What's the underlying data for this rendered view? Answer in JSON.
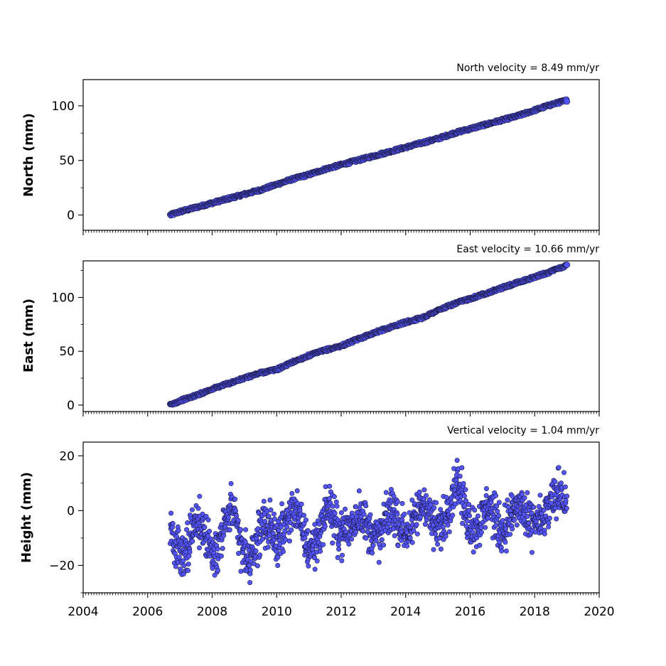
{
  "chart_data": [
    {
      "type": "scatter",
      "title": "North velocity = 8.49 mm/yr",
      "xlabel": "",
      "ylabel": "North (mm)",
      "xlim": [
        2004,
        2020
      ],
      "ylim": [
        -14,
        124
      ],
      "yticks": [
        "0",
        "50",
        "100"
      ],
      "yticks_values": [
        0,
        50,
        100
      ],
      "xticks": [],
      "marker_color": "#5555ff",
      "edge_color": "#1a1a40",
      "series": [
        {
          "x": [
            2006.7,
            2007.0,
            2007.5,
            2008.0,
            2008.5,
            2009.0,
            2009.5,
            2010.0,
            2010.5,
            2011.0,
            2011.5,
            2012.0,
            2012.5,
            2013.0,
            2013.5,
            2014.0,
            2014.5,
            2015.0,
            2015.5,
            2016.0,
            2016.5,
            2017.0,
            2017.5,
            2018.0,
            2018.5,
            2019.0
          ],
          "values": [
            0,
            3,
            7,
            11,
            15,
            19,
            23,
            28,
            33,
            37,
            42,
            46,
            50,
            54,
            58,
            62,
            66,
            70,
            75,
            79,
            83,
            87,
            91,
            96,
            101,
            105
          ]
        }
      ]
    },
    {
      "type": "scatter",
      "title": "East velocity = 10.66 mm/yr",
      "xlabel": "",
      "ylabel": "East (mm)",
      "xlim": [
        2004,
        2020
      ],
      "ylim": [
        -6,
        134
      ],
      "yticks": [
        "0",
        "50",
        "100"
      ],
      "yticks_values": [
        0,
        50,
        100
      ],
      "xticks": [],
      "marker_color": "#5555ff",
      "edge_color": "#1a1a40",
      "series": [
        {
          "x": [
            2006.7,
            2007.0,
            2007.5,
            2008.0,
            2008.5,
            2009.0,
            2009.5,
            2010.0,
            2010.5,
            2011.0,
            2011.5,
            2012.0,
            2012.5,
            2013.0,
            2013.5,
            2014.0,
            2014.5,
            2015.0,
            2015.5,
            2016.0,
            2016.5,
            2017.0,
            2017.5,
            2018.0,
            2018.5,
            2019.0
          ],
          "values": [
            0,
            4,
            9,
            15,
            20,
            25,
            30,
            33,
            40,
            46,
            51,
            55,
            61,
            67,
            72,
            77,
            81,
            88,
            94,
            99,
            104,
            109,
            114,
            119,
            124,
            130
          ]
        }
      ]
    },
    {
      "type": "scatter",
      "title": "Vertical velocity = 1.04 mm/yr",
      "xlabel": "",
      "ylabel": "Height (mm)",
      "xlim": [
        2004,
        2020
      ],
      "ylim": [
        -30,
        25
      ],
      "yticks": [
        "20",
        "0",
        "−20"
      ],
      "yticks_values": [
        20,
        0,
        -20
      ],
      "xticks": [
        "2004",
        "2006",
        "2008",
        "2010",
        "2012",
        "2014",
        "2016",
        "2018",
        "2020"
      ],
      "xticks_values": [
        2004,
        2006,
        2008,
        2010,
        2012,
        2014,
        2016,
        2018,
        2020
      ],
      "marker_color": "#5555ff",
      "edge_color": "#1a1a40",
      "series": [
        {
          "x": [
            2006.7,
            2006.9,
            2007.1,
            2007.3,
            2007.6,
            2007.8,
            2008.0,
            2008.2,
            2008.4,
            2008.6,
            2008.8,
            2009.0,
            2009.2,
            2009.4,
            2009.6,
            2009.8,
            2010.0,
            2010.2,
            2010.4,
            2010.6,
            2010.8,
            2011.0,
            2011.2,
            2011.4,
            2011.6,
            2011.8,
            2012.0,
            2012.2,
            2012.4,
            2012.6,
            2012.8,
            2013.0,
            2013.2,
            2013.4,
            2013.6,
            2013.8,
            2014.0,
            2014.2,
            2014.4,
            2014.6,
            2014.8,
            2015.0,
            2015.2,
            2015.4,
            2015.6,
            2015.8,
            2016.0,
            2016.2,
            2016.4,
            2016.6,
            2016.8,
            2017.0,
            2017.2,
            2017.4,
            2017.6,
            2017.8,
            2018.0,
            2018.2,
            2018.4,
            2018.6,
            2018.8,
            2019.0
          ],
          "values": [
            -5,
            -14,
            -18,
            -10,
            -3,
            -9,
            -15,
            -12,
            -5,
            2,
            -9,
            -16,
            -19,
            -10,
            -3,
            -7,
            -11,
            -7,
            -2,
            2,
            -8,
            -14,
            -12,
            -6,
            3,
            -5,
            -8,
            -7,
            -4,
            0,
            -6,
            -9,
            -10,
            -3,
            1,
            -5,
            -8,
            -6,
            0,
            4,
            -4,
            -7,
            -3,
            4,
            12,
            2,
            -5,
            -6,
            -2,
            3,
            -4,
            -8,
            -3,
            0,
            2,
            -6,
            -3,
            -5,
            0,
            4,
            8,
            2
          ]
        }
      ]
    }
  ]
}
